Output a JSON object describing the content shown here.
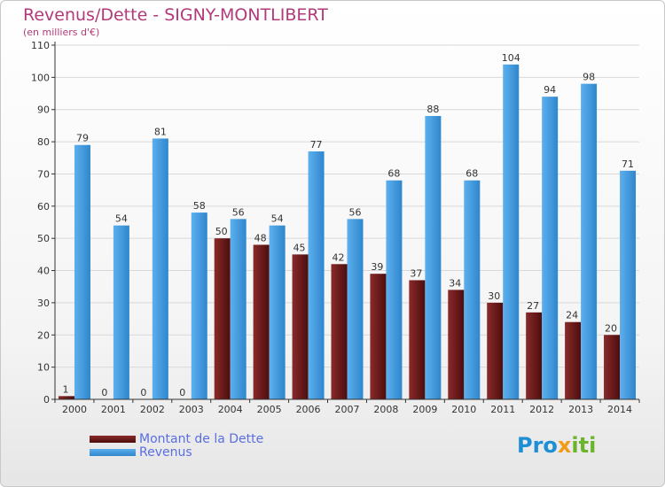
{
  "title": "Revenus/Dette - SIGNY-MONTLIBERT",
  "subtitle": "(en milliers d'€)",
  "logo": {
    "parts": [
      "Pro",
      "x",
      "iti"
    ],
    "colors": [
      "#1e8fd6",
      "#f29b18",
      "#6bb52c"
    ]
  },
  "colors": {
    "dette": "#6e1a1a",
    "revenus": "#3d98de",
    "axis": "#333333",
    "grid": "#d8d8d8"
  },
  "chart_data": {
    "type": "bar",
    "title": "Revenus/Dette - SIGNY-MONTLIBERT",
    "subtitle": "(en milliers d'€)",
    "categories": [
      "2000",
      "2001",
      "2002",
      "2003",
      "2004",
      "2005",
      "2006",
      "2007",
      "2008",
      "2009",
      "2010",
      "2011",
      "2012",
      "2013",
      "2014"
    ],
    "series": [
      {
        "name": "Montant de la Dette",
        "values": [
          1,
          0,
          0,
          0,
          50,
          48,
          45,
          42,
          39,
          37,
          34,
          30,
          27,
          24,
          20
        ]
      },
      {
        "name": "Revenus",
        "values": [
          79,
          54,
          81,
          58,
          56,
          54,
          77,
          56,
          68,
          88,
          68,
          104,
          94,
          98,
          71
        ]
      }
    ],
    "ylim": [
      0,
      110
    ],
    "yticks": [
      0,
      10,
      20,
      30,
      40,
      50,
      60,
      70,
      80,
      90,
      100,
      110
    ],
    "grid": true,
    "legend": "bottom-left"
  }
}
